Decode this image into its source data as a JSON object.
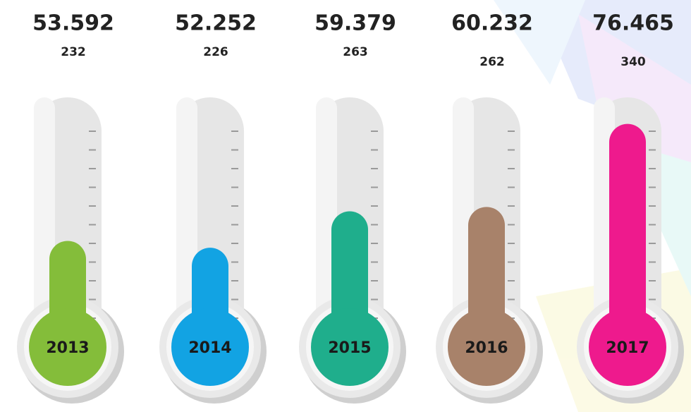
{
  "chart_data": {
    "type": "thermometer",
    "categories": [
      "2013",
      "2014",
      "2015",
      "2016",
      "2017"
    ],
    "values": [
      53592,
      52252,
      59379,
      60232,
      76465
    ],
    "value_labels": [
      "53.592",
      "52.252",
      "59.379",
      "60.232",
      "76.465"
    ],
    "counts": [
      232,
      226,
      263,
      262,
      340
    ],
    "colors": [
      "#84bd3a",
      "#12a3e3",
      "#1fae8c",
      "#a8826a",
      "#ee1a8d"
    ],
    "ylim": [
      40000,
      80000
    ]
  }
}
